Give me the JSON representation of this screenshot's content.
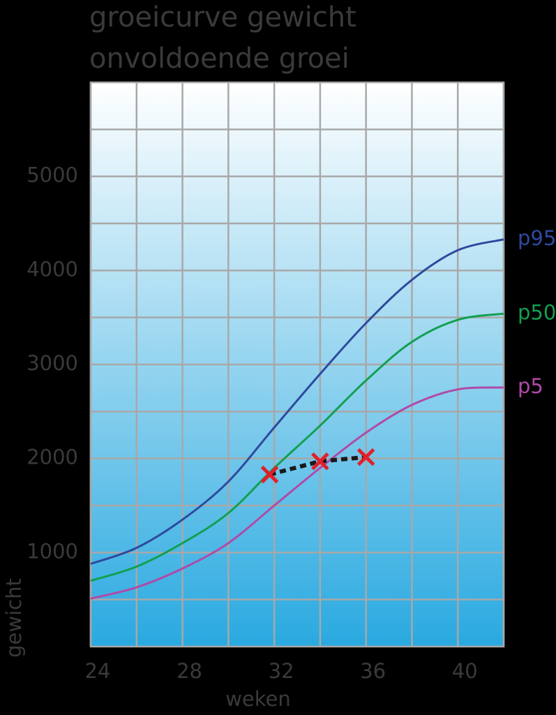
{
  "chart_data": {
    "type": "line",
    "title": [
      "groeicurve gewicht",
      "onvoldoende groei"
    ],
    "x_label": "weken",
    "y_label": "gewicht",
    "xlim": [
      24,
      42
    ],
    "xticks": [
      24,
      28,
      32,
      36,
      40
    ],
    "xgrid": [
      24,
      26,
      28,
      30,
      32,
      34,
      36,
      38,
      40,
      42
    ],
    "ylim": [
      0,
      6000
    ],
    "yticks": [
      1000,
      2000,
      3000,
      4000,
      5000
    ],
    "ygrid": [
      500,
      1000,
      1500,
      2000,
      2500,
      3000,
      3500,
      4000,
      4500,
      5000,
      5500
    ],
    "grid": true,
    "x": [
      24,
      26,
      28,
      30,
      32,
      34,
      36,
      38,
      40,
      42
    ],
    "series": [
      {
        "name": "p95",
        "color": "#2e4a9e",
        "values": [
          880,
          1050,
          1350,
          1755,
          2330,
          2900,
          3440,
          3900,
          4215,
          4330
        ]
      },
      {
        "name": "p50",
        "color": "#12a050",
        "values": [
          700,
          850,
          1100,
          1420,
          1900,
          2350,
          2830,
          3240,
          3475,
          3540
        ]
      },
      {
        "name": "p5",
        "color": "#b04aa8",
        "values": [
          510,
          630,
          830,
          1100,
          1500,
          1900,
          2275,
          2570,
          2735,
          2755
        ]
      }
    ],
    "measurements": {
      "x": [
        31.8,
        34,
        36
      ],
      "values": [
        1830,
        1970,
        2015
      ],
      "color": "#e0202a",
      "line_color": "#1a1a1a"
    }
  }
}
